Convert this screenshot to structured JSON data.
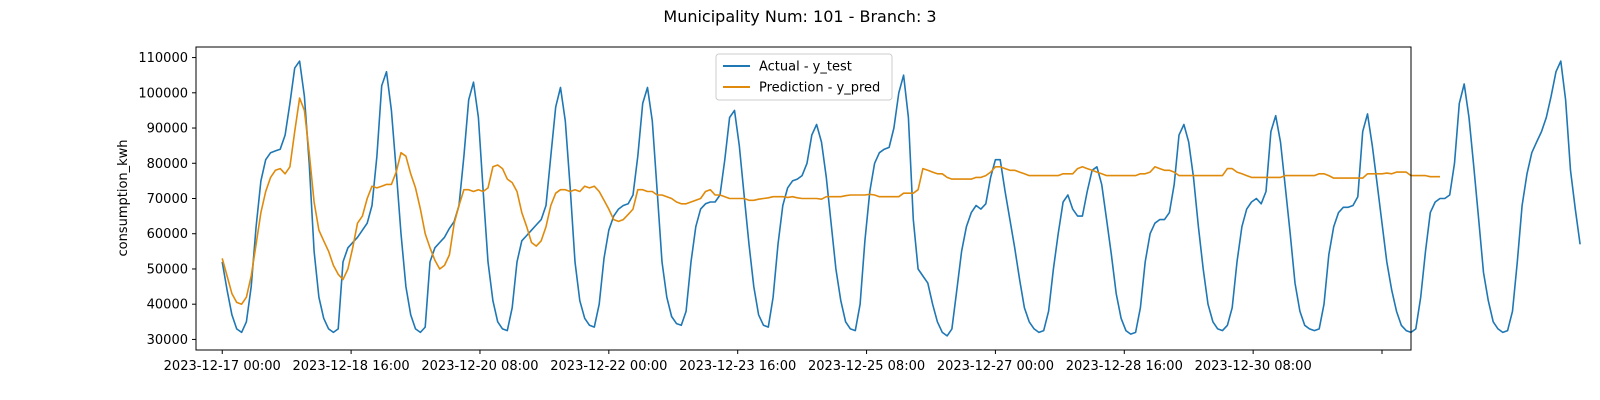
{
  "chart_data": {
    "type": "line",
    "title": "Municipality Num: 101 - Branch: 3",
    "xlabel": "",
    "ylabel": "consumption_kwh",
    "ylim": [
      27000,
      113000
    ],
    "yticks": [
      30000,
      40000,
      50000,
      60000,
      70000,
      80000,
      90000,
      100000,
      110000
    ],
    "x_start": "2023-12-17 00:00",
    "x_step_hours": 1.5,
    "xlim_index": [
      -5.43,
      246
    ],
    "xticks": [
      {
        "index": 0,
        "label": "2023-12-17 00:00"
      },
      {
        "index": 26.667,
        "label": "2023-12-18 16:00"
      },
      {
        "index": 53.333,
        "label": "2023-12-20 08:00"
      },
      {
        "index": 80,
        "label": "2023-12-22 00:00"
      },
      {
        "index": 106.667,
        "label": "2023-12-23 16:00"
      },
      {
        "index": 133.333,
        "label": "2023-12-25 08:00"
      },
      {
        "index": 160,
        "label": "2023-12-27 00:00"
      },
      {
        "index": 186.667,
        "label": "2023-12-28 16:00"
      },
      {
        "index": 213.333,
        "label": "2023-12-30 08:00"
      },
      {
        "index": 240,
        "label": ""
      }
    ],
    "legend_position": "top-center",
    "grid": false,
    "series": [
      {
        "name": "Actual - y_test",
        "color": "#1f77b4",
        "values": [
          52000,
          44000,
          37000,
          33000,
          32000,
          35000,
          45000,
          62000,
          75000,
          81000,
          83000,
          83500,
          84000,
          88000,
          97000,
          107000,
          109000,
          99000,
          80000,
          55000,
          42000,
          36000,
          33000,
          32000,
          33000,
          52000,
          56000,
          57500,
          59000,
          61000,
          63000,
          68000,
          82000,
          102000,
          106000,
          95000,
          78000,
          60000,
          45000,
          37000,
          33000,
          32000,
          33500,
          52000,
          56000,
          57500,
          59000,
          61500,
          63500,
          68000,
          82000,
          98000,
          103000,
          93000,
          72000,
          52000,
          41000,
          35000,
          33000,
          32500,
          39000,
          52000,
          58000,
          59500,
          61000,
          62500,
          64000,
          68000,
          82000,
          96000,
          101500,
          92000,
          73000,
          52000,
          41000,
          36000,
          34000,
          33500,
          40000,
          53000,
          61000,
          65000,
          67000,
          68000,
          68500,
          71000,
          82000,
          97000,
          101500,
          92000,
          72000,
          52000,
          42000,
          36500,
          34500,
          34000,
          38000,
          52000,
          62000,
          67000,
          68500,
          69000,
          69000,
          71000,
          81000,
          93000,
          95000,
          85000,
          71000,
          57000,
          45000,
          37000,
          34000,
          33500,
          42000,
          57000,
          68000,
          73000,
          75000,
          75500,
          76500,
          80000,
          88000,
          91000,
          86000,
          76000,
          63000,
          50000,
          41000,
          35000,
          33000,
          32500,
          40000,
          58000,
          72000,
          80000,
          83000,
          84000,
          84500,
          90000,
          100000,
          105000,
          93000,
          64000,
          50000,
          48000,
          46000,
          40000,
          35000,
          32000,
          31000,
          33000,
          44000,
          55000,
          62000,
          66000,
          68000,
          67000,
          68500,
          76000,
          81000,
          81000,
          72000,
          64000,
          56000,
          47000,
          39000,
          35000,
          33000,
          32000,
          32500,
          38000,
          50000,
          60000,
          69000,
          71000,
          67000,
          65000,
          65000,
          72000,
          78000,
          79000,
          74000,
          64000,
          54000,
          43000,
          36000,
          32500,
          31500,
          32000,
          39000,
          52000,
          60000,
          63000,
          64000,
          64000,
          66000,
          74000,
          88000,
          91000,
          86000,
          76000,
          62000,
          50000,
          40000,
          35000,
          33000,
          32500,
          34000,
          39000,
          52000,
          62000,
          67000,
          69000,
          70000,
          68500,
          72000,
          89000,
          93500,
          86000,
          73000,
          60000,
          46000,
          38000,
          34000,
          33000,
          32500,
          33000,
          40000,
          54000,
          62000,
          66000,
          67500,
          67500,
          68000,
          70500,
          89000,
          94000,
          85000,
          74000,
          63000,
          52000,
          44000,
          38000,
          34000,
          32500,
          32000,
          33000,
          42000,
          55000,
          66000,
          69000,
          70000,
          70000,
          71000,
          80000,
          97000,
          102500,
          93000,
          79000,
          64000,
          49000,
          41000,
          35000,
          33000,
          32000,
          32500,
          38000,
          52000,
          68000,
          77000,
          83000,
          86000,
          89000,
          93000,
          99000,
          106000,
          109000,
          98000,
          78000,
          67000,
          57000
        ]
      },
      {
        "name": "Prediction - y_pred",
        "color": "#e08a0b",
        "values": [
          53000,
          48000,
          43000,
          40500,
          40000,
          42000,
          48000,
          57000,
          66000,
          72000,
          76000,
          78000,
          78500,
          77000,
          79000,
          89000,
          98500,
          95000,
          83000,
          69000,
          61000,
          58000,
          55000,
          51000,
          48500,
          47000,
          50000,
          56000,
          63000,
          65000,
          70000,
          73500,
          73000,
          73500,
          74000,
          74000,
          77500,
          83000,
          82000,
          77000,
          73000,
          67000,
          60000,
          56000,
          52500,
          50000,
          51000,
          54000,
          63000,
          68000,
          72500,
          72500,
          72000,
          72500,
          72000,
          73000,
          79000,
          79500,
          78500,
          75500,
          74500,
          72000,
          66000,
          62000,
          57500,
          56500,
          58000,
          62000,
          68000,
          71500,
          72500,
          72500,
          72000,
          72500,
          72000,
          73500,
          73000,
          73500,
          72000,
          69500,
          67000,
          64000,
          63500,
          64000,
          65500,
          67000,
          72500,
          72500,
          72000,
          72000,
          71000,
          71000,
          70500,
          70000,
          69000,
          68500,
          68500,
          69000,
          69500,
          70000,
          72000,
          72500,
          71000,
          71000,
          70500,
          70000,
          70000,
          70000,
          70000,
          69500,
          69500,
          69800,
          70000,
          70200,
          70500,
          70500,
          70500,
          70300,
          70500,
          70200,
          70000,
          70000,
          70000,
          70000,
          69800,
          70500,
          70500,
          70500,
          70500,
          70800,
          71000,
          71000,
          71000,
          71000,
          71200,
          71000,
          70500,
          70500,
          70500,
          70500,
          70500,
          71500,
          71500,
          71500,
          72500,
          78500,
          78000,
          77500,
          77000,
          77000,
          76000,
          75500,
          75500,
          75500,
          75500,
          75500,
          76000,
          76000,
          76500,
          77500,
          79000,
          79000,
          78500,
          78000,
          78000,
          77500,
          77000,
          76500,
          76500,
          76500,
          76500,
          76500,
          76500,
          76500,
          77000,
          77000,
          77000,
          78500,
          79000,
          78500,
          78000,
          77500,
          77000,
          76500,
          76500,
          76500,
          76500,
          76500,
          76500,
          76500,
          77000,
          77000,
          77500,
          79000,
          78500,
          78000,
          78000,
          77500,
          76500,
          76500,
          76500,
          76500,
          76500,
          76500,
          76500,
          76500,
          76500,
          76500,
          78500,
          78500,
          77500,
          77000,
          76500,
          76000,
          76000,
          76000,
          76000,
          76000,
          76000,
          76000,
          76500,
          76500,
          76500,
          76500,
          76500,
          76500,
          76500,
          77000,
          77000,
          76500,
          75800,
          75800,
          75800,
          75800,
          75800,
          75800,
          75800,
          77000,
          77000,
          77000,
          77000,
          77200,
          77000,
          77500,
          77500,
          77500,
          76500,
          76500,
          76500,
          76500,
          76200,
          76200,
          76200
        ]
      }
    ]
  }
}
